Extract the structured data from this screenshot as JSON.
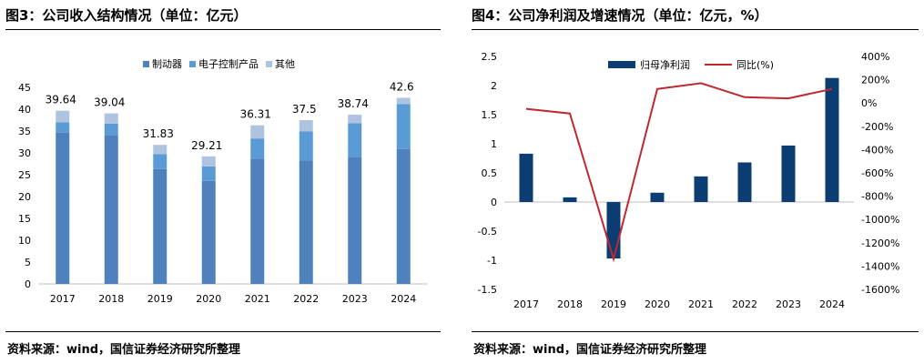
{
  "charts": [
    {
      "figure_title": "图3：公司收入结构情况（单位：亿元）",
      "source": "资料来源：wind，国信证券经济研究所整理"
    },
    {
      "figure_title": "图4：公司净利润及增速情况（单位：亿元，%）",
      "source": "资料来源：wind，国信证券经济研究所整理"
    }
  ],
  "colors": {
    "brake": "#4f81bd",
    "electronic": "#5b9bd5",
    "other": "#adc3e0",
    "net_profit": "#0b3d73",
    "growth": "#c0282f"
  },
  "chart_data": [
    {
      "type": "bar",
      "stacked": true,
      "categories": [
        "2017",
        "2018",
        "2019",
        "2020",
        "2021",
        "2022",
        "2023",
        "2024"
      ],
      "series": [
        {
          "name": "制动器",
          "values": [
            34.6,
            34.1,
            26.3,
            23.6,
            28.7,
            28.3,
            29.1,
            30.9
          ]
        },
        {
          "name": "电子控制产品",
          "values": [
            2.4,
            2.6,
            3.4,
            3.3,
            4.6,
            6.6,
            7.7,
            10.3
          ]
        },
        {
          "name": "其他",
          "values": [
            2.64,
            2.34,
            2.13,
            2.31,
            3.01,
            2.6,
            1.94,
            1.4
          ]
        }
      ],
      "totals": [
        "39.64",
        "39.04",
        "31.83",
        "29.21",
        "36.31",
        "37.5",
        "38.74",
        "42.6"
      ],
      "ylim": [
        0,
        45
      ],
      "yticks": [
        0,
        5,
        10,
        15,
        20,
        25,
        30,
        35,
        40,
        45
      ],
      "grid": false,
      "legend": "top-center"
    },
    {
      "type": "bar+line",
      "categories": [
        "2017",
        "2018",
        "2019",
        "2020",
        "2021",
        "2022",
        "2023",
        "2024"
      ],
      "bar_series": {
        "name": "归母净利润",
        "values": [
          0.83,
          0.08,
          -0.97,
          0.16,
          0.44,
          0.68,
          0.97,
          2.13
        ]
      },
      "line_series": {
        "name": "同比(%)",
        "values": [
          -50,
          -90,
          -1340,
          120,
          170,
          50,
          40,
          120
        ]
      },
      "ylim": [
        -1.5,
        2.5
      ],
      "yticks": [
        "-1.5",
        "-1",
        "-0.5",
        "0",
        "0.5",
        "1",
        "1.5",
        "2",
        "2.5"
      ],
      "y2lim": [
        -1600,
        400
      ],
      "y2ticks": [
        "-1600%",
        "-1400%",
        "-1200%",
        "-1000%",
        "-800%",
        "-600%",
        "-400%",
        "-200%",
        "0%",
        "200%",
        "400%"
      ],
      "grid": false,
      "legend": "top-center"
    }
  ]
}
